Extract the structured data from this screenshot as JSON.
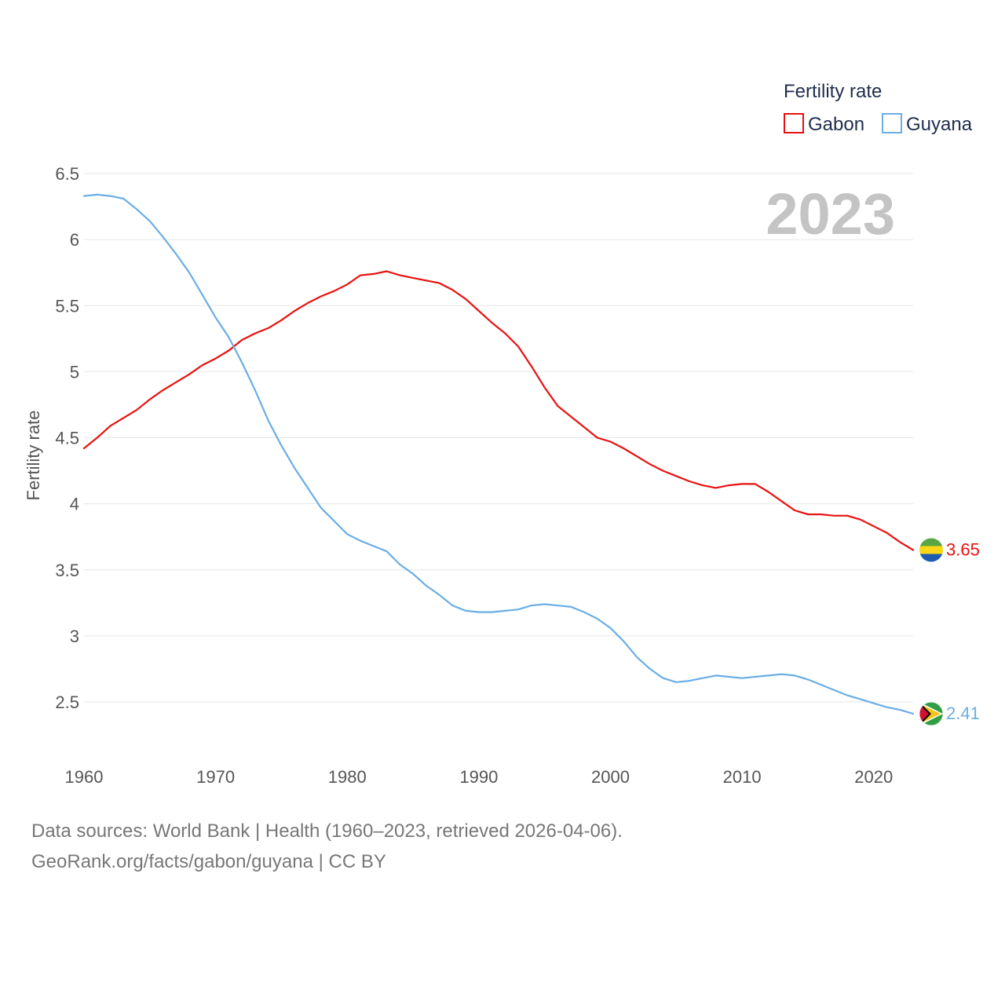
{
  "chart_data": {
    "type": "line",
    "title": "Fertility rate",
    "year_watermark": "2023",
    "xlabel": "",
    "ylabel": "Fertility rate",
    "xlim": [
      1960,
      2023
    ],
    "ylim": [
      2.2,
      6.5
    ],
    "x_ticks": [
      1960,
      1970,
      1980,
      1990,
      2000,
      2010,
      2020
    ],
    "y_ticks": [
      2.5,
      3,
      3.5,
      4,
      4.5,
      5,
      5.5,
      6,
      6.5
    ],
    "y_tick_labels": [
      "2.5",
      "3",
      "3.5",
      "4",
      "4.5",
      "5",
      "5.5",
      "6",
      "6.5"
    ],
    "legend": {
      "title": "Fertility rate",
      "position": "top-right"
    },
    "x": [
      1960,
      1961,
      1962,
      1963,
      1964,
      1965,
      1966,
      1967,
      1968,
      1969,
      1970,
      1971,
      1972,
      1973,
      1974,
      1975,
      1976,
      1977,
      1978,
      1979,
      1980,
      1981,
      1982,
      1983,
      1984,
      1985,
      1986,
      1987,
      1988,
      1989,
      1990,
      1991,
      1992,
      1993,
      1994,
      1995,
      1996,
      1997,
      1998,
      1999,
      2000,
      2001,
      2002,
      2003,
      2004,
      2005,
      2006,
      2007,
      2008,
      2009,
      2010,
      2011,
      2012,
      2013,
      2014,
      2015,
      2016,
      2017,
      2018,
      2019,
      2020,
      2021,
      2022,
      2023
    ],
    "series": [
      {
        "name": "Gabon",
        "color": "#e8110f",
        "end_label": "3.65",
        "values": [
          4.42,
          4.5,
          4.59,
          4.65,
          4.71,
          4.79,
          4.86,
          4.92,
          4.98,
          5.05,
          5.1,
          5.16,
          5.24,
          5.29,
          5.33,
          5.39,
          5.46,
          5.52,
          5.57,
          5.61,
          5.66,
          5.73,
          5.74,
          5.76,
          5.73,
          5.71,
          5.69,
          5.67,
          5.62,
          5.55,
          5.46,
          5.37,
          5.29,
          5.19,
          5.04,
          4.88,
          4.74,
          4.66,
          4.58,
          4.5,
          4.47,
          4.42,
          4.36,
          4.3,
          4.25,
          4.21,
          4.17,
          4.14,
          4.12,
          4.14,
          4.15,
          4.15,
          4.09,
          4.02,
          3.95,
          3.92,
          3.92,
          3.91,
          3.91,
          3.88,
          3.83,
          3.78,
          3.71,
          3.65
        ]
      },
      {
        "name": "Guyana",
        "color": "#6aaee6",
        "end_label": "2.41",
        "values": [
          6.33,
          6.34,
          6.33,
          6.31,
          6.23,
          6.14,
          6.02,
          5.89,
          5.75,
          5.58,
          5.41,
          5.26,
          5.07,
          4.86,
          4.63,
          4.44,
          4.27,
          4.12,
          3.97,
          3.87,
          3.77,
          3.72,
          3.68,
          3.64,
          3.54,
          3.47,
          3.38,
          3.31,
          3.23,
          3.19,
          3.18,
          3.18,
          3.19,
          3.2,
          3.23,
          3.24,
          3.23,
          3.22,
          3.18,
          3.13,
          3.06,
          2.96,
          2.84,
          2.75,
          2.68,
          2.65,
          2.66,
          2.68,
          2.7,
          2.69,
          2.68,
          2.69,
          2.7,
          2.71,
          2.7,
          2.67,
          2.63,
          2.59,
          2.55,
          2.52,
          2.49,
          2.46,
          2.44,
          2.41
        ]
      }
    ]
  },
  "footer": {
    "source": "Data sources: World Bank | Health (1960–2023, retrieved 2026-04-06).",
    "credit": "GeoRank.org/facts/gabon/guyana | CC BY"
  },
  "flags": {
    "gabon": {
      "icon": "gabon-flag-icon",
      "colors": [
        "#5aa645",
        "#f9d616",
        "#1d5bb0"
      ]
    },
    "guyana": {
      "icon": "guyana-flag-icon",
      "colors": [
        "#2f9e44",
        "#ffffff",
        "#f5c518",
        "#000000",
        "#d21034"
      ]
    }
  }
}
